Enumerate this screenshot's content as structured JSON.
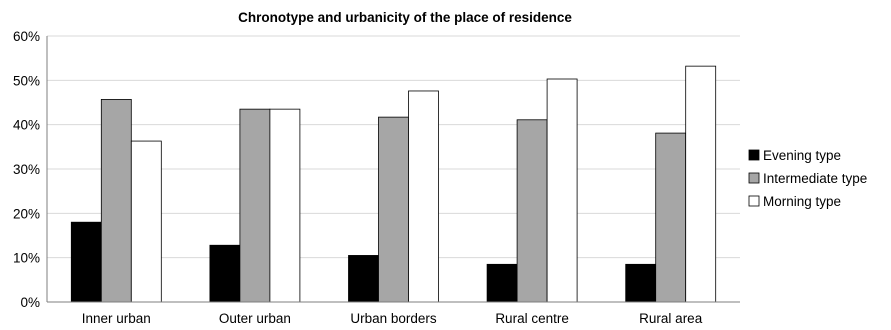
{
  "chart_data": {
    "type": "bar",
    "title": "Chronotype and urbanicity of the place of residence",
    "xlabel": "",
    "ylabel": "",
    "categories": [
      "Inner urban",
      "Outer urban",
      "Urban borders",
      "Rural centre",
      "Rural area"
    ],
    "series": [
      {
        "name": "Evening type",
        "color": "#000000",
        "values": [
          18.0,
          12.8,
          10.5,
          8.5,
          8.5
        ]
      },
      {
        "name": "Intermediate type",
        "color": "#a6a6a6",
        "values": [
          45.7,
          43.5,
          41.7,
          41.1,
          38.1
        ]
      },
      {
        "name": "Morning type",
        "color": "#ffffff",
        "values": [
          36.3,
          43.5,
          47.6,
          50.3,
          53.2
        ]
      }
    ],
    "ylim": [
      0,
      60
    ],
    "yticks": [
      0,
      10,
      20,
      30,
      40,
      50,
      60
    ],
    "ytick_labels": [
      "0%",
      "10%",
      "20%",
      "30%",
      "40%",
      "50%",
      "60%"
    ],
    "grid": true,
    "legend_position": "right"
  }
}
